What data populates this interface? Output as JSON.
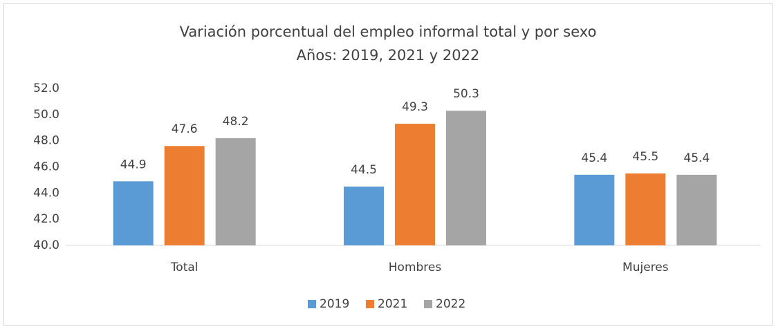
{
  "chart_data": {
    "type": "bar",
    "title": "Variación porcentual del empleo informal total y por sexo",
    "subtitle": "Años: 2019, 2021 y 2022",
    "categories": [
      "Total",
      "Hombres",
      "Mujeres"
    ],
    "series": [
      {
        "name": "2019",
        "color": "#5b9bd5",
        "values": [
          44.9,
          44.5,
          45.4
        ]
      },
      {
        "name": "2021",
        "color": "#ed7d31",
        "values": [
          47.6,
          49.3,
          45.5
        ]
      },
      {
        "name": "2022",
        "color": "#a5a5a5",
        "values": [
          48.2,
          50.3,
          45.4
        ]
      }
    ],
    "ylim": [
      40,
      52
    ],
    "yticks": [
      {
        "value": 40,
        "label": "40.0"
      },
      {
        "value": 42,
        "label": "42.0"
      },
      {
        "value": 44,
        "label": "44.0"
      },
      {
        "value": 46,
        "label": "46.0"
      },
      {
        "value": 48,
        "label": "48.0"
      },
      {
        "value": 50,
        "label": "50.0"
      },
      {
        "value": 52,
        "label": "52.0"
      }
    ],
    "grid": false,
    "legend": "bottom"
  }
}
